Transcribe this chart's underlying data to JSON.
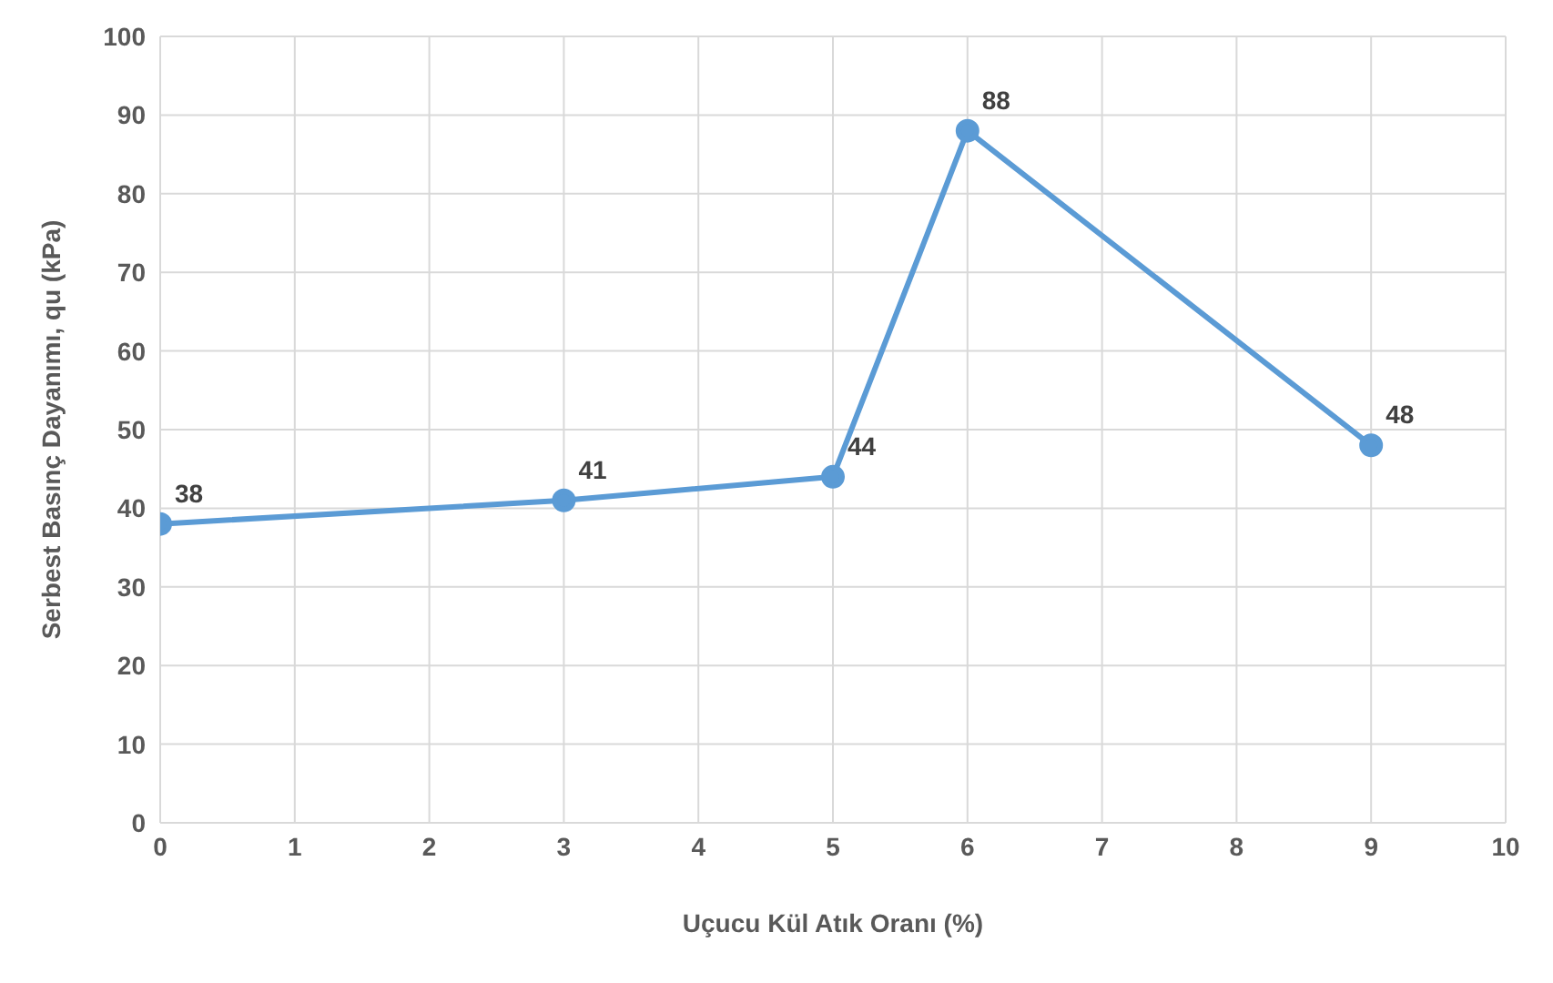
{
  "chart_data": {
    "type": "line",
    "xlabel": "Uçucu  Kül Atık Oranı (%)",
    "ylabel": "Serbest Basınç Dayanımı, qu (kPa)",
    "x": [
      0,
      3,
      5,
      6,
      9
    ],
    "series": [
      {
        "color": "#5b9bd5",
        "values": [
          38,
          41,
          44,
          88,
          48
        ]
      }
    ],
    "xlim": [
      0,
      10
    ],
    "xticks": [
      0,
      1,
      2,
      3,
      4,
      5,
      6,
      7,
      8,
      9,
      10
    ],
    "ylim": [
      0,
      100
    ],
    "yticks": [
      0,
      10,
      20,
      30,
      40,
      50,
      60,
      70,
      80,
      90,
      100
    ],
    "grid": true,
    "marker": "circle",
    "line_style": "solid",
    "data_labels": true
  }
}
